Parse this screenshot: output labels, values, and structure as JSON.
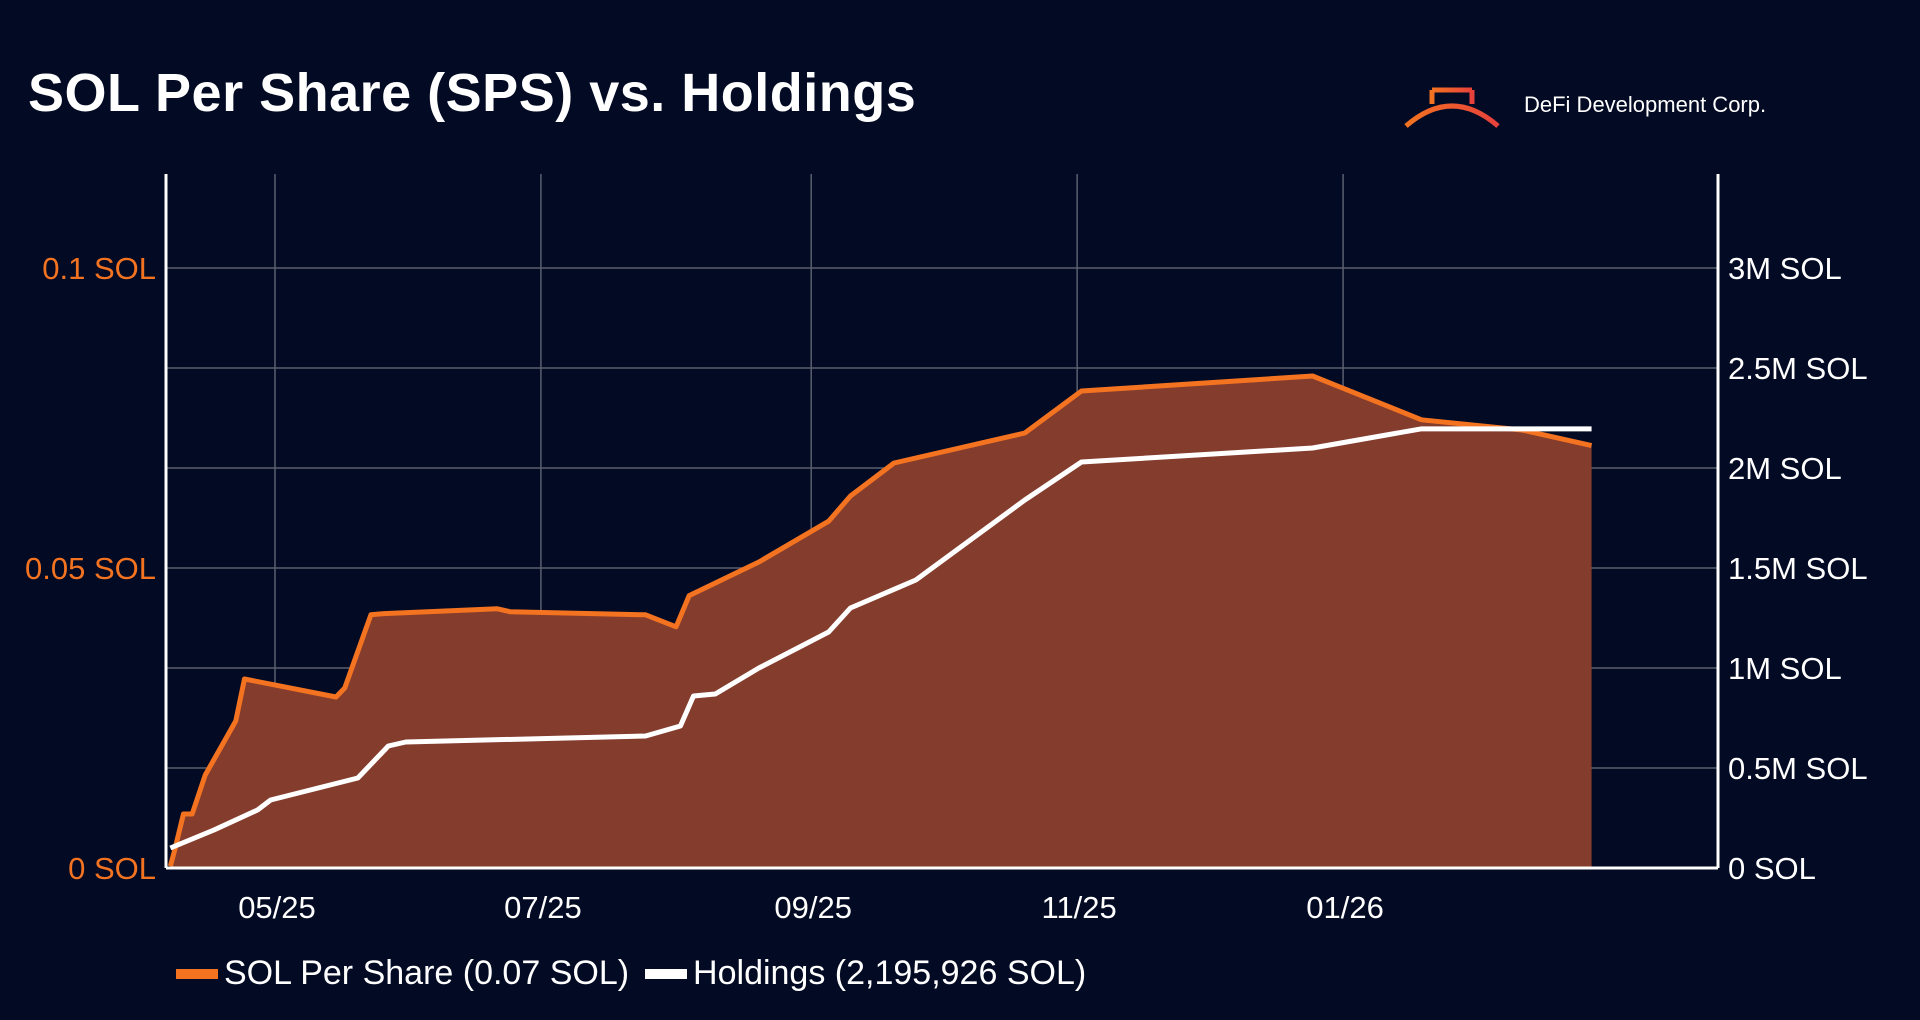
{
  "header": {
    "title": "SOL Per Share (SPS) vs. Holdings",
    "brand_name": "DeFi Development Corp.",
    "brand_icon": "arch-bridge-logo"
  },
  "colors": {
    "background": "#030a23",
    "sps_line": "#f37321",
    "sps_fill": "#843c2d",
    "holdings_line": "#ffffff",
    "left_axis_text": "#f37321",
    "right_axis_text": "#ffffff",
    "grid": "#5a5f70"
  },
  "chart_data": {
    "type": "area",
    "x_tick_labels": [
      "05/25",
      "07/25",
      "09/25",
      "11/25",
      "01/26"
    ],
    "left_axis": {
      "tick_labels": [
        "0 SOL",
        "0.05 SOL",
        "0.1 SOL"
      ],
      "ticks": [
        0,
        0.05,
        0.1
      ],
      "range": [
        0,
        0.1
      ]
    },
    "right_axis": {
      "tick_labels": [
        "0 SOL",
        "0.5M SOL",
        "1M SOL",
        "1.5M SOL",
        "2M SOL",
        "2.5M SOL",
        "3M SOL"
      ],
      "ticks": [
        0,
        500000,
        1000000,
        1500000,
        2000000,
        2500000,
        3000000
      ],
      "range": [
        0,
        3000000
      ]
    },
    "grid": true,
    "x_month_ticks": [
      "2025-05",
      "2025-07",
      "2025-09",
      "2025-11",
      "2026-01"
    ],
    "x_range": [
      "2025-04-06",
      "2026-03-28"
    ],
    "series": [
      {
        "name": "SOL Per Share (0.07 SOL)",
        "axis": "left",
        "style": "area",
        "points": [
          [
            "2025-04-07",
            0.0003
          ],
          [
            "2025-04-08",
            0.003
          ],
          [
            "2025-04-10",
            0.009
          ],
          [
            "2025-04-12",
            0.009
          ],
          [
            "2025-04-15",
            0.0155
          ],
          [
            "2025-04-22",
            0.0245
          ],
          [
            "2025-04-24",
            0.0315
          ],
          [
            "2025-05-15",
            0.0285
          ],
          [
            "2025-05-17",
            0.03
          ],
          [
            "2025-05-23",
            0.0422
          ],
          [
            "2025-05-26",
            0.0424
          ],
          [
            "2025-06-21",
            0.0432
          ],
          [
            "2025-06-24",
            0.0427
          ],
          [
            "2025-07-25",
            0.0422
          ],
          [
            "2025-08-01",
            0.0402
          ],
          [
            "2025-08-04",
            0.0454
          ],
          [
            "2025-08-20",
            0.051
          ],
          [
            "2025-09-05",
            0.0578
          ],
          [
            "2025-09-10",
            0.062
          ],
          [
            "2025-09-20",
            0.0675
          ],
          [
            "2025-10-20",
            0.0725
          ],
          [
            "2025-11-02",
            0.0795
          ],
          [
            "2025-12-25",
            0.082
          ],
          [
            "2026-01-19",
            0.0747
          ],
          [
            "2026-02-11",
            0.073
          ],
          [
            "2026-02-27",
            0.0704
          ]
        ]
      },
      {
        "name": "Holdings (2,195,926 SOL)",
        "axis": "right",
        "style": "line",
        "points": [
          [
            "2025-04-07",
            100000
          ],
          [
            "2025-04-17",
            190000
          ],
          [
            "2025-04-27",
            290000
          ],
          [
            "2025-04-30",
            340000
          ],
          [
            "2025-05-20",
            450000
          ],
          [
            "2025-05-27",
            610000
          ],
          [
            "2025-05-31",
            630000
          ],
          [
            "2025-07-25",
            660000
          ],
          [
            "2025-08-02",
            710000
          ],
          [
            "2025-08-05",
            860000
          ],
          [
            "2025-08-10",
            870000
          ],
          [
            "2025-08-20",
            1000000
          ],
          [
            "2025-09-05",
            1180000
          ],
          [
            "2025-09-10",
            1300000
          ],
          [
            "2025-09-25",
            1440000
          ],
          [
            "2025-10-20",
            1840000
          ],
          [
            "2025-11-02",
            2030000
          ],
          [
            "2025-12-25",
            2100000
          ],
          [
            "2026-01-19",
            2195926
          ],
          [
            "2026-02-27",
            2195926
          ]
        ]
      }
    ]
  },
  "legend": {
    "sps_label": "SOL Per Share (0.07 SOL)",
    "holdings_label": "Holdings (2,195,926 SOL)"
  }
}
